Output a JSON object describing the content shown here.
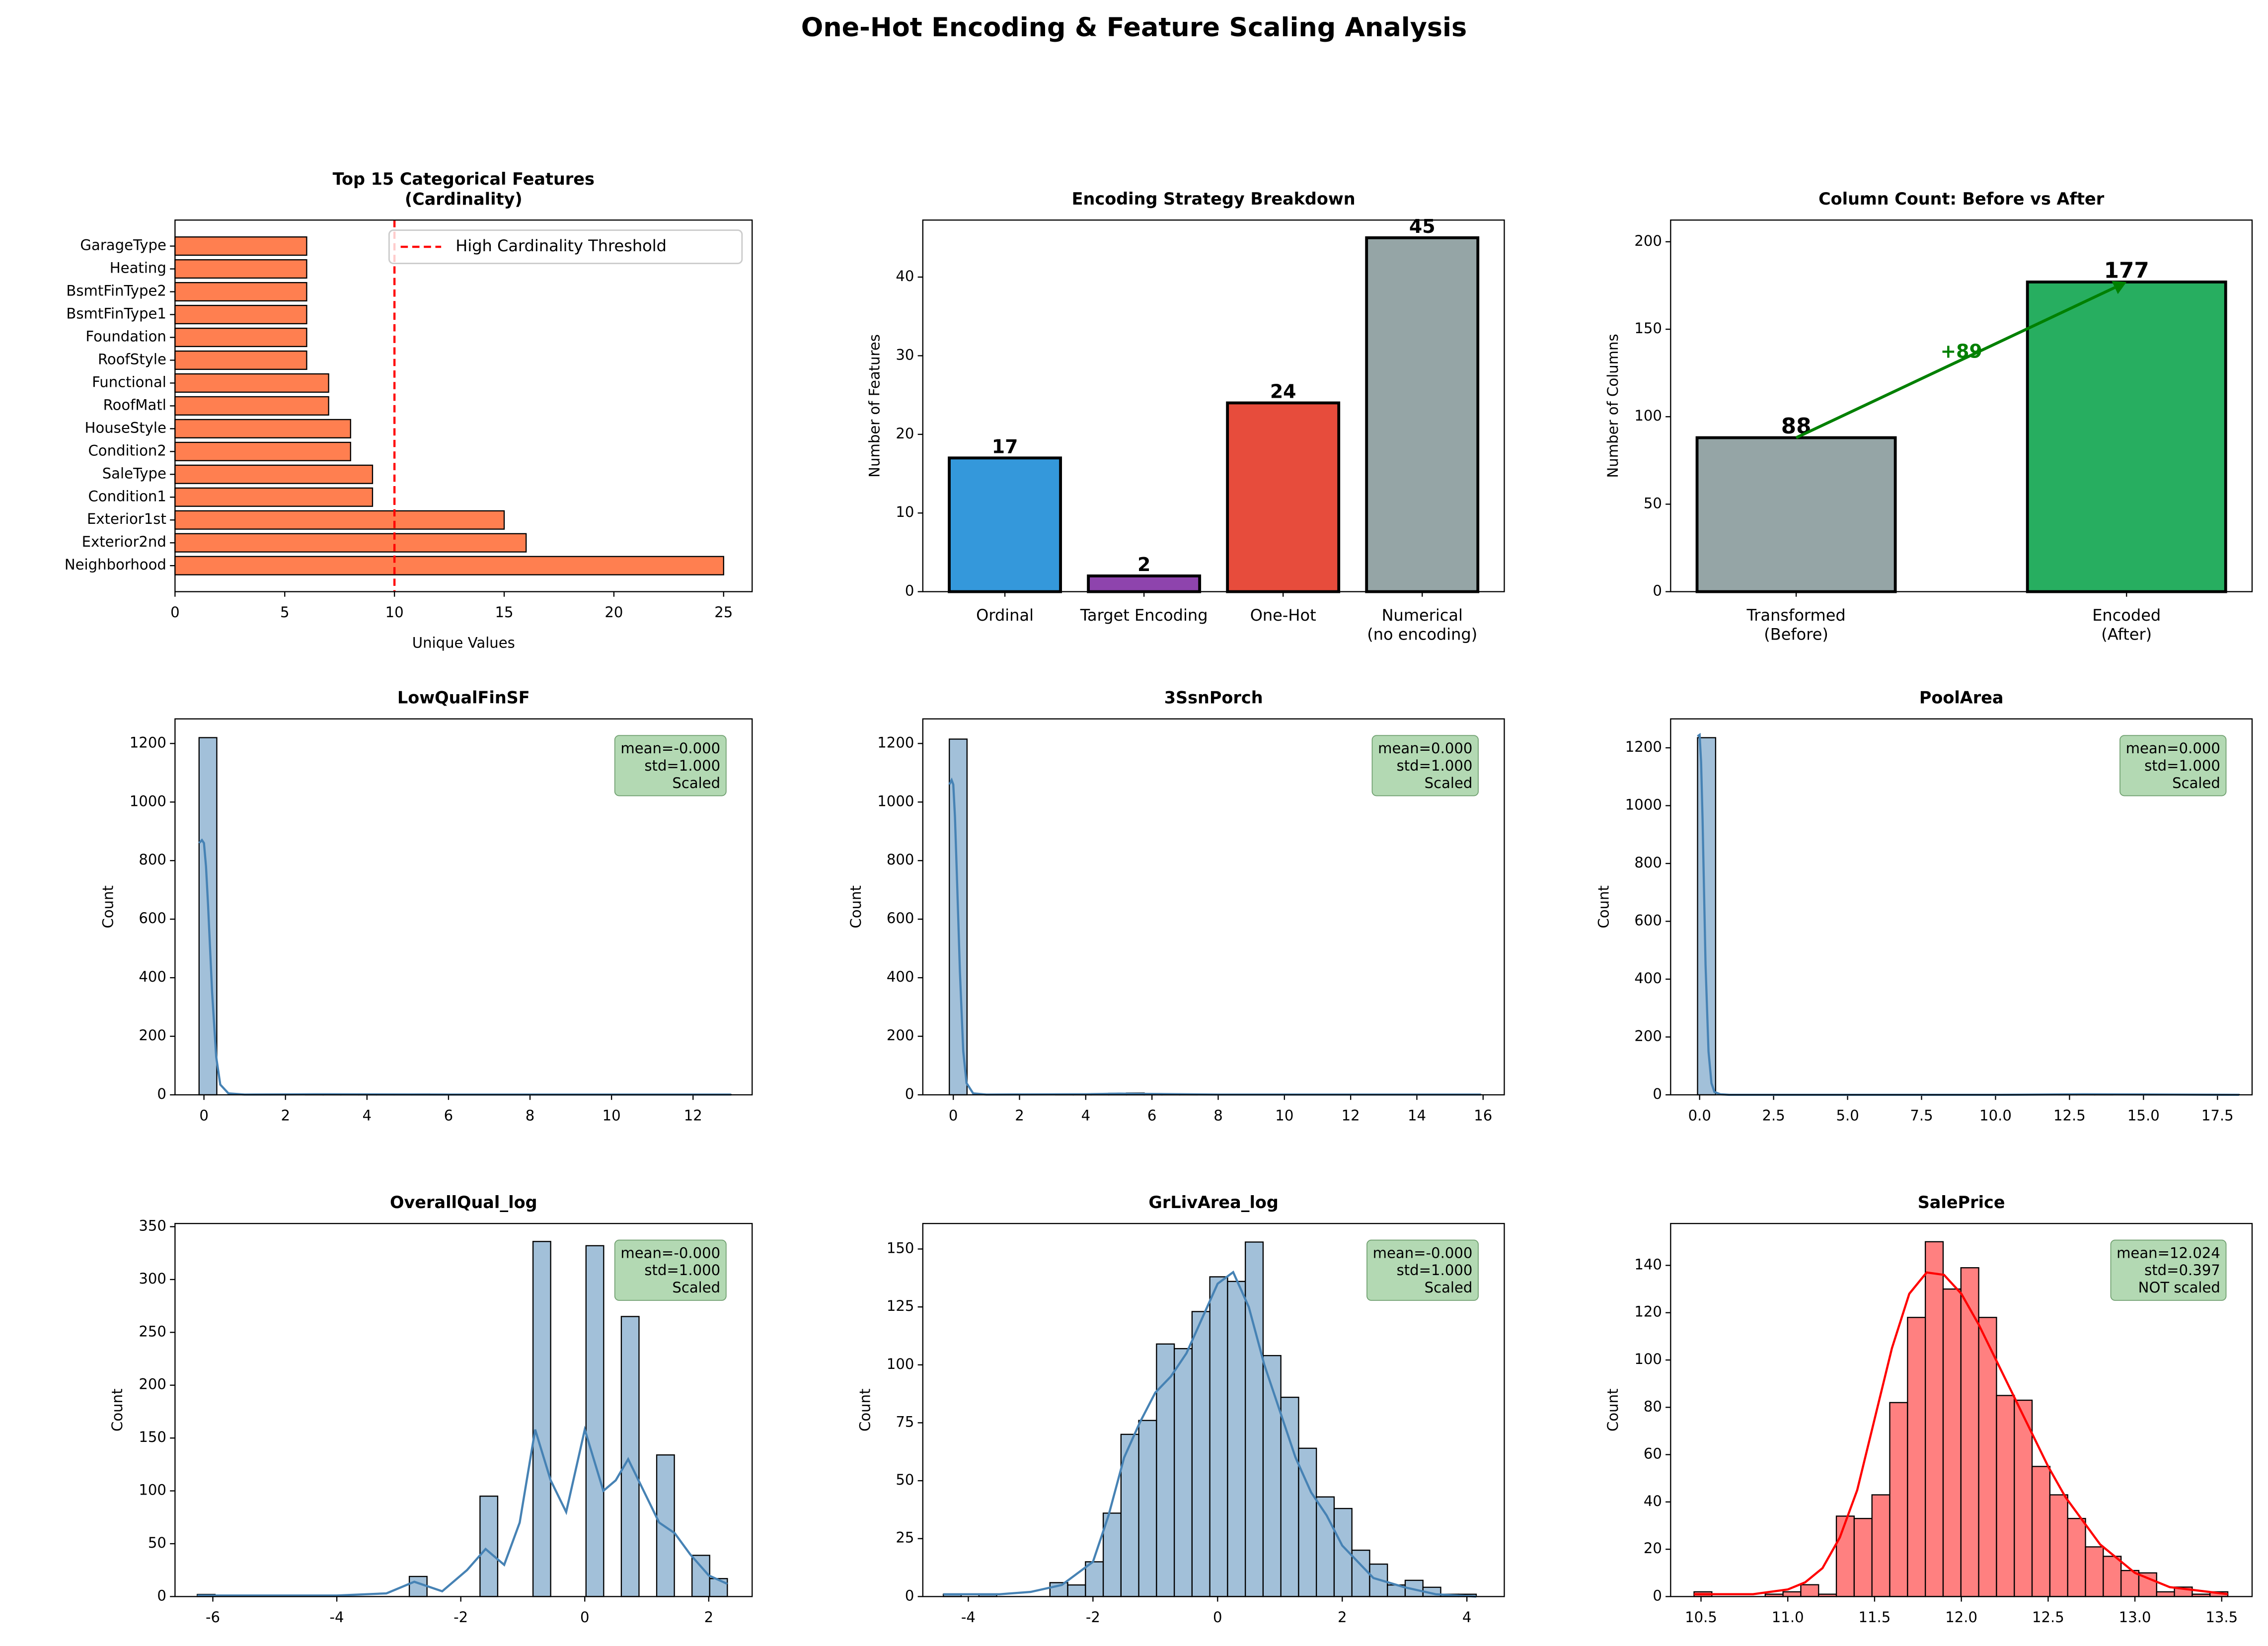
{
  "title": "One-Hot Encoding & Feature Scaling Analysis",
  "chart_data": [
    {
      "type": "barh",
      "title": "Top 15 Categorical Features\n(Cardinality)",
      "xlabel": "Unique Values",
      "categories": [
        "Neighborhood",
        "Exterior2nd",
        "Exterior1st",
        "Condition1",
        "SaleType",
        "Condition2",
        "HouseStyle",
        "RoofMatl",
        "Functional",
        "RoofStyle",
        "Foundation",
        "BsmtFinType1",
        "BsmtFinType2",
        "Heating",
        "GarageType"
      ],
      "values": [
        25,
        16,
        15,
        9,
        9,
        8,
        8,
        7,
        7,
        6,
        6,
        6,
        6,
        6,
        6
      ],
      "color": "#ff7f50",
      "xlim": [
        0,
        26.3
      ],
      "xticks": [
        0,
        5,
        10,
        15,
        20,
        25
      ],
      "reference_line": {
        "value": 10,
        "label": "High Cardinality Threshold",
        "color": "#ff0000"
      },
      "legend": "upper right"
    },
    {
      "type": "bar",
      "title": "Encoding Strategy Breakdown",
      "ylabel": "Number of Features",
      "categories": [
        "Ordinal",
        "Target Encoding",
        "One-Hot",
        "Numerical\n(no encoding)"
      ],
      "values": [
        17,
        2,
        24,
        45
      ],
      "colors": [
        "#3498db",
        "#8e44ad",
        "#e74c3c",
        "#95a5a6"
      ],
      "ylim": [
        0,
        47.25
      ],
      "yticks": [
        0,
        10,
        20,
        30,
        40
      ]
    },
    {
      "type": "bar",
      "title": "Column Count: Before vs After",
      "ylabel": "Number of Columns",
      "categories": [
        "Transformed\n(Before)",
        "Encoded\n(After)"
      ],
      "values": [
        88,
        177
      ],
      "colors": [
        "#95a5a6",
        "#27ae60"
      ],
      "ylim": [
        0,
        212.4
      ],
      "yticks": [
        0,
        50,
        100,
        150,
        200
      ],
      "annotation": {
        "text": "+89",
        "color": "#008000"
      }
    },
    {
      "type": "histogram",
      "title": "LowQualFinSF",
      "ylabel": "Count",
      "bins": [
        -0.12,
        0.315,
        0.75,
        1.185,
        1.62,
        2.055,
        2.49,
        2.925,
        3.36,
        3.795,
        4.23,
        4.665,
        5.1,
        5.535,
        5.97,
        6.405,
        6.84,
        7.275,
        7.71,
        8.145,
        8.58,
        9.015,
        9.45,
        9.885,
        10.32,
        10.755,
        11.19,
        11.625,
        12.06,
        12.495,
        12.93
      ],
      "counts": [
        1220,
        0,
        0,
        1,
        1,
        0,
        1,
        1,
        2,
        1,
        1,
        2,
        3,
        2,
        1,
        1,
        0,
        1,
        1,
        1,
        2,
        1,
        0,
        1,
        0,
        0,
        1,
        2,
        1,
        1
      ],
      "kde": {
        "x": [
          -0.12,
          -0.05,
          0,
          0.05,
          0.1,
          0.15,
          0.2,
          0.3,
          0.4,
          0.6,
          1,
          3,
          6,
          9,
          12.93
        ],
        "y": [
          860,
          870,
          860,
          780,
          650,
          500,
          350,
          130,
          35,
          5,
          1,
          2,
          1,
          1,
          1
        ]
      },
      "color": "#a2c0d9",
      "kde_color": "#4682b4",
      "xlim": [
        -0.71,
        13.45
      ],
      "xticks": [
        0,
        2,
        4,
        6,
        8,
        10,
        12
      ],
      "ylim": [
        0,
        1284
      ],
      "yticks": [
        0,
        200,
        400,
        600,
        800,
        1000,
        1200
      ],
      "stats_box": "mean=-0.000\nstd=1.000\nScaled",
      "box_color": "#b3d9b3"
    },
    {
      "type": "histogram",
      "title": "3SsnPorch",
      "ylabel": "Count",
      "bins": [
        -0.12,
        0.415,
        0.95,
        1.485,
        2.02,
        2.555,
        3.09,
        3.625,
        4.16,
        4.695,
        5.23,
        5.765,
        6.3,
        6.835,
        7.37,
        7.905,
        8.44,
        8.975,
        9.51,
        10.045,
        10.58,
        11.115,
        11.65,
        12.185,
        12.72,
        13.255,
        13.79,
        14.325,
        14.86,
        15.395,
        15.93
      ],
      "counts": [
        1215,
        0,
        0,
        0,
        0,
        0,
        1,
        1,
        4,
        5,
        6,
        4,
        2,
        1,
        0,
        1,
        2,
        0,
        1,
        0,
        0,
        1,
        0,
        1,
        1,
        0,
        0,
        0,
        0,
        1
      ],
      "kde": {
        "x": [
          -0.12,
          -0.05,
          0,
          0.05,
          0.1,
          0.15,
          0.2,
          0.3,
          0.4,
          0.6,
          1,
          4,
          5,
          6,
          8,
          12,
          15.93
        ],
        "y": [
          1060,
          1075,
          1060,
          950,
          780,
          600,
          420,
          150,
          40,
          5,
          1,
          2,
          4,
          3,
          1,
          1,
          1
        ]
      },
      "color": "#a2c0d9",
      "kde_color": "#4682b4",
      "xlim": [
        -0.92,
        16.64
      ],
      "xticks": [
        0,
        2,
        4,
        6,
        8,
        10,
        12,
        14,
        16
      ],
      "ylim": [
        0,
        1284
      ],
      "yticks": [
        0,
        200,
        400,
        600,
        800,
        1000,
        1200
      ],
      "stats_box": "mean=0.000\nstd=1.000\nScaled",
      "box_color": "#b3d9b3"
    },
    {
      "type": "histogram",
      "title": "PoolArea",
      "ylabel": "Count",
      "bins": [
        -0.07,
        0.54,
        1.15,
        1.76,
        2.37,
        2.98,
        3.59,
        4.2,
        4.81,
        5.42,
        6.03,
        6.64,
        7.25,
        7.86,
        8.47,
        9.08,
        9.69,
        10.3,
        10.91,
        11.52,
        12.13,
        12.74,
        13.35,
        13.96,
        14.57,
        15.18,
        15.79,
        16.4,
        17.01,
        17.62,
        18.23
      ],
      "counts": [
        1235,
        0,
        0,
        0,
        0,
        0,
        0,
        0,
        0,
        0,
        0,
        0,
        0,
        0,
        0,
        0,
        0,
        0,
        0,
        0,
        1,
        1,
        1,
        0,
        0,
        1,
        1,
        0,
        0,
        1
      ],
      "kde": {
        "x": [
          -0.07,
          0,
          0.05,
          0.1,
          0.15,
          0.2,
          0.3,
          0.4,
          0.5,
          0.7,
          1,
          5,
          10,
          13,
          16,
          18.23
        ],
        "y": [
          1240,
          1245,
          1150,
          950,
          700,
          450,
          150,
          40,
          10,
          2,
          0,
          0,
          0,
          2,
          1,
          0
        ]
      },
      "color": "#a2c0d9",
      "kde_color": "#4682b4",
      "xlim": [
        -0.98,
        18.67
      ],
      "xticks": [
        {
          "value": 0,
          "label": "0.0"
        },
        2.5,
        {
          "value": 5,
          "label": "5.0"
        },
        7.5,
        {
          "value": 10,
          "label": "10.0"
        },
        12.5,
        {
          "value": 15,
          "label": "15.0"
        },
        17.5
      ],
      "ylim": [
        0,
        1300
      ],
      "yticks": [
        0,
        200,
        400,
        600,
        800,
        1000,
        1200
      ],
      "stats_box": "mean=0.000\nstd=1.000\nScaled",
      "box_color": "#b3d9b3"
    },
    {
      "type": "histogram",
      "title": "OverallQual_log",
      "ylabel": "Count",
      "bins": [
        -6.25,
        -5.965,
        -5.68,
        -5.395,
        -5.11,
        -4.825,
        -4.54,
        -4.255,
        -3.97,
        -3.685,
        -3.4,
        -3.115,
        -2.83,
        -2.545,
        -2.26,
        -1.975,
        -1.69,
        -1.405,
        -1.12,
        -0.835,
        -0.55,
        -0.265,
        0.02,
        0.305,
        0.59,
        0.875,
        1.16,
        1.445,
        1.73,
        2.015,
        2.3
      ],
      "counts": [
        2,
        0,
        0,
        0,
        0,
        0,
        0,
        0,
        0,
        0,
        0,
        0,
        19,
        0,
        0,
        0,
        95,
        0,
        0,
        336,
        0,
        0,
        332,
        0,
        265,
        0,
        134,
        0,
        39,
        17
      ],
      "kde": {
        "x": [
          -6.25,
          -4,
          -3.2,
          -2.75,
          -2.3,
          -1.9,
          -1.6,
          -1.3,
          -1.05,
          -0.8,
          -0.55,
          -0.3,
          0,
          0.3,
          0.5,
          0.7,
          0.95,
          1.2,
          1.45,
          1.7,
          2,
          2.3
        ],
        "y": [
          1,
          1,
          3,
          14,
          5,
          25,
          45,
          30,
          70,
          158,
          110,
          80,
          158,
          100,
          110,
          130,
          100,
          70,
          60,
          40,
          20,
          12
        ]
      },
      "color": "#a2c0d9",
      "kde_color": "#4682b4",
      "xlim": [
        -6.61,
        2.7
      ],
      "xticks": [
        -6,
        -4,
        -2,
        0,
        2
      ],
      "ylim": [
        0,
        353
      ],
      "yticks": [
        0,
        50,
        100,
        150,
        200,
        250,
        300,
        350
      ],
      "stats_box": "mean=-0.000\nstd=1.000\nScaled",
      "box_color": "#b3d9b3"
    },
    {
      "type": "histogram",
      "title": "GrLivArea_log",
      "ylabel": "Count",
      "bins": [
        -4.4,
        -4.115,
        -3.83,
        -3.545,
        -3.26,
        -2.975,
        -2.69,
        -2.405,
        -2.12,
        -1.835,
        -1.55,
        -1.265,
        -0.98,
        -0.695,
        -0.41,
        -0.125,
        0.16,
        0.445,
        0.73,
        1.015,
        1.3,
        1.585,
        1.87,
        2.155,
        2.44,
        2.725,
        3.01,
        3.295,
        3.58,
        3.865,
        4.15
      ],
      "counts": [
        1,
        0,
        1,
        0,
        0,
        0,
        6,
        5,
        15,
        36,
        70,
        76,
        109,
        107,
        123,
        138,
        136,
        153,
        104,
        86,
        64,
        43,
        38,
        20,
        14,
        5,
        7,
        4,
        1,
        1
      ],
      "kde": {
        "x": [
          -4.4,
          -3.5,
          -3,
          -2.5,
          -2,
          -1.75,
          -1.5,
          -1.25,
          -1,
          -0.75,
          -0.5,
          -0.25,
          0,
          0.25,
          0.5,
          0.75,
          1,
          1.25,
          1.5,
          1.75,
          2,
          2.5,
          3,
          3.5,
          4.15
        ],
        "y": [
          1,
          1,
          2,
          5,
          15,
          35,
          60,
          75,
          88,
          95,
          105,
          120,
          135,
          140,
          125,
          100,
          80,
          60,
          45,
          35,
          22,
          8,
          4,
          1,
          0
        ]
      },
      "color": "#a2c0d9",
      "kde_color": "#4682b4",
      "xlim": [
        -4.73,
        4.6
      ],
      "xticks": [
        -4,
        -2,
        0,
        2,
        4
      ],
      "ylim": [
        0,
        161
      ],
      "yticks": [
        0,
        25,
        50,
        75,
        100,
        125,
        150
      ],
      "stats_box": "mean=-0.000\nstd=1.000\nScaled",
      "box_color": "#b3d9b3"
    },
    {
      "type": "histogram",
      "title": "SalePrice",
      "ylabel": "Count",
      "bins": [
        10.46,
        10.5625,
        10.665,
        10.7675,
        10.87,
        10.9725,
        11.075,
        11.1775,
        11.28,
        11.3825,
        11.485,
        11.5875,
        11.69,
        11.7925,
        11.895,
        11.9975,
        12.1,
        12.2025,
        12.305,
        12.4075,
        12.51,
        12.6125,
        12.715,
        12.8175,
        12.92,
        13.0225,
        13.125,
        13.2275,
        13.33,
        13.4325,
        13.535
      ],
      "counts": [
        2,
        0,
        0,
        0,
        1,
        2,
        5,
        1,
        34,
        33,
        43,
        82,
        118,
        150,
        130,
        139,
        118,
        85,
        83,
        55,
        43,
        33,
        21,
        17,
        11,
        10,
        2,
        4,
        1,
        2
      ],
      "kde": {
        "x": [
          10.46,
          10.8,
          11,
          11.1,
          11.2,
          11.3,
          11.4,
          11.5,
          11.6,
          11.7,
          11.8,
          11.9,
          12,
          12.1,
          12.2,
          12.3,
          12.4,
          12.5,
          12.6,
          12.8,
          13,
          13.2,
          13.535
        ],
        "y": [
          1,
          1,
          3,
          6,
          12,
          25,
          45,
          75,
          105,
          128,
          137,
          136,
          128,
          115,
          100,
          85,
          70,
          55,
          42,
          22,
          10,
          4,
          1
        ]
      },
      "color": "#ff8080",
      "kde_color": "#ff0000",
      "xlim": [
        10.325,
        13.675
      ],
      "xticks": [
        10.5,
        {
          "value": 11,
          "label": "11.0"
        },
        11.5,
        {
          "value": 12,
          "label": "12.0"
        },
        12.5,
        {
          "value": 13,
          "label": "13.0"
        },
        13.5
      ],
      "ylim": [
        0,
        157.7
      ],
      "yticks": [
        0,
        20,
        40,
        60,
        80,
        100,
        120,
        140
      ],
      "stats_box": "mean=12.024\nstd=0.397\nNOT scaled",
      "box_color": "#b3d9b3"
    }
  ]
}
